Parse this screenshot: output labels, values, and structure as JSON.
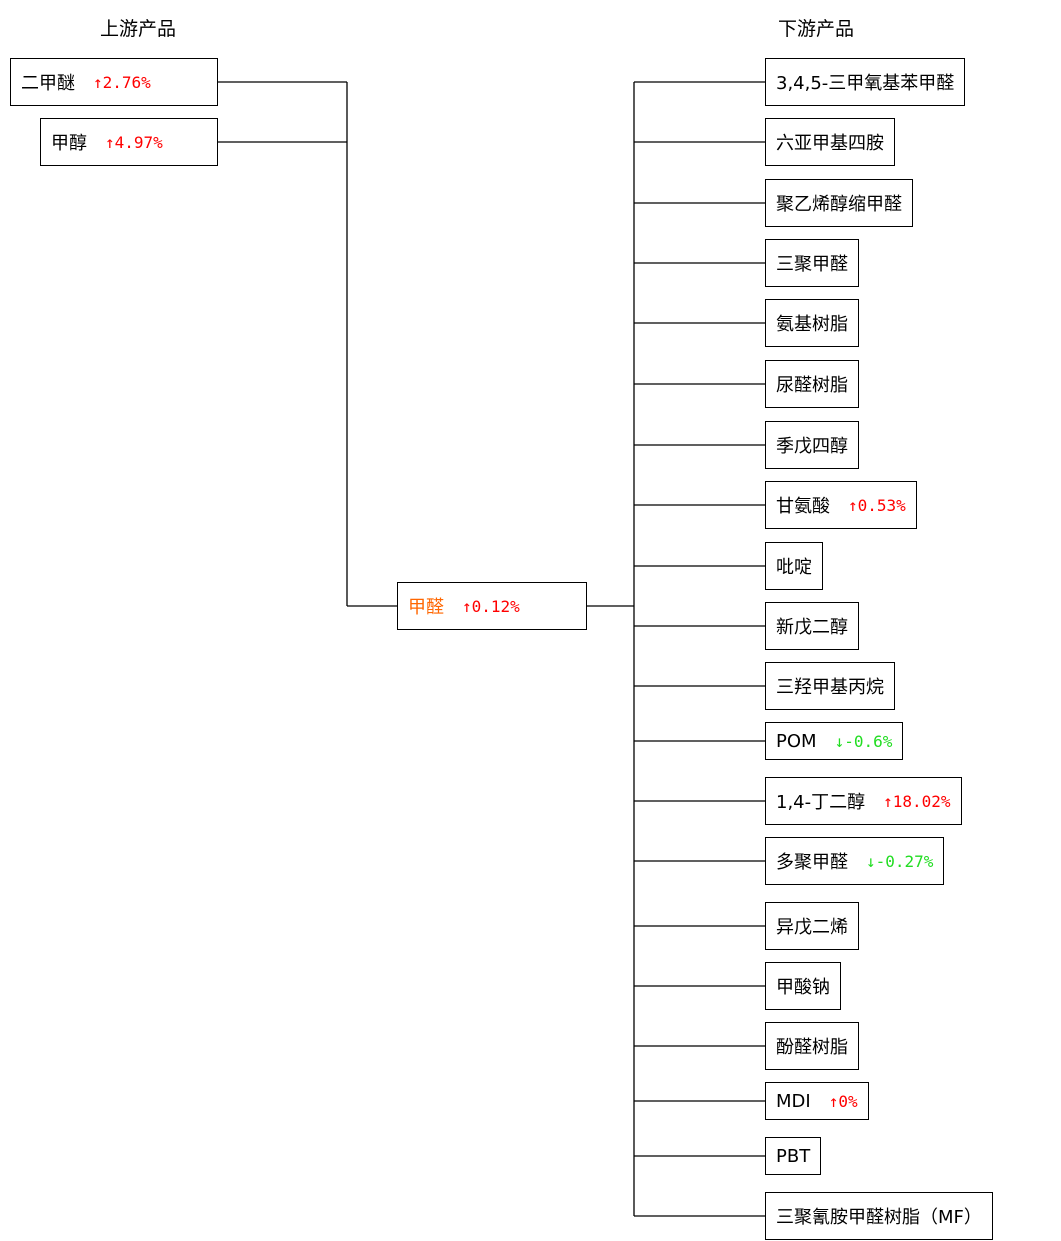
{
  "header": {
    "upstream": "上游产品",
    "downstream": "下游产品"
  },
  "upstream": [
    {
      "name": "二甲醚",
      "change": "↑2.76%",
      "change_color": "#ff0000"
    },
    {
      "name": "甲醇",
      "change": "↑4.97%",
      "change_color": "#ff0000"
    }
  ],
  "center": {
    "name": "甲醛",
    "name_color": "#ff6600",
    "change": "↑0.12%",
    "change_color": "#ff0000"
  },
  "downstream": [
    {
      "name": "3,4,5-三甲氧基苯甲醛"
    },
    {
      "name": "六亚甲基四胺"
    },
    {
      "name": "聚乙烯醇缩甲醛"
    },
    {
      "name": "三聚甲醛"
    },
    {
      "name": "氨基树脂"
    },
    {
      "name": "尿醛树脂"
    },
    {
      "name": "季戊四醇"
    },
    {
      "name": "甘氨酸",
      "change": "↑0.53%",
      "change_color": "#ff0000"
    },
    {
      "name": "吡啶"
    },
    {
      "name": "新戊二醇"
    },
    {
      "name": "三羟甲基丙烷"
    },
    {
      "name": "POM",
      "change": "↓-0.6%",
      "change_color": "#22dd22"
    },
    {
      "name": "1,4-丁二醇",
      "change": "↑18.02%",
      "change_color": "#ff0000"
    },
    {
      "name": "多聚甲醛",
      "change": "↓-0.27%",
      "change_color": "#22dd22"
    },
    {
      "name": "异戊二烯"
    },
    {
      "name": "甲酸钠"
    },
    {
      "name": "酚醛树脂"
    },
    {
      "name": "MDI",
      "change": "↑0%",
      "change_color": "#ff0000"
    },
    {
      "name": "PBT"
    },
    {
      "name": "三聚氰胺甲醛树脂（MF）"
    }
  ]
}
